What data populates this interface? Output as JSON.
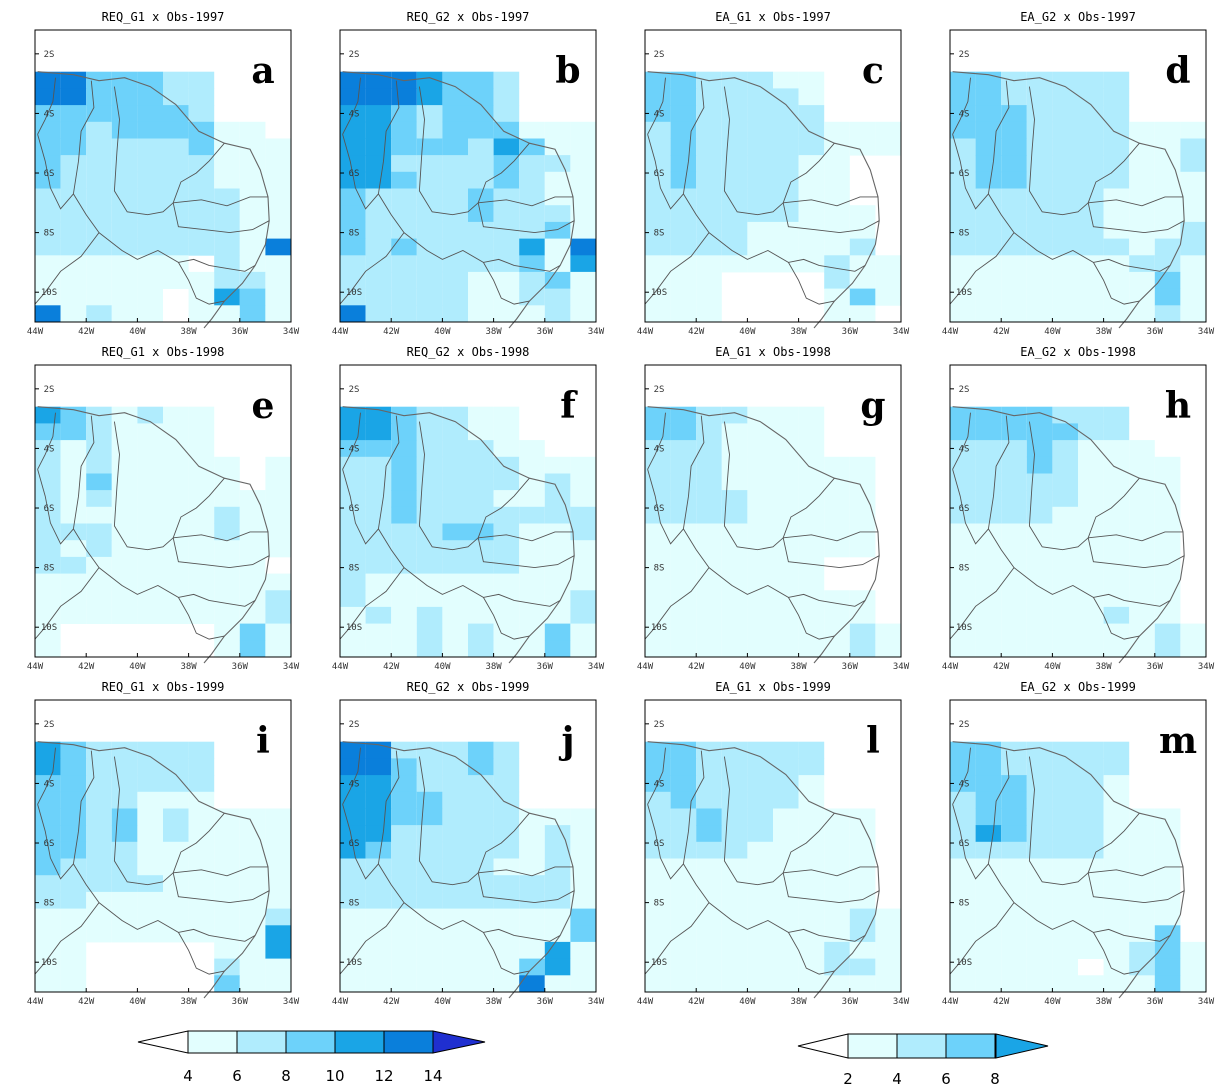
{
  "chart_data": {
    "type": "heatmap",
    "colors": [
      "#e2fefe",
      "#b0ecfd",
      "#6dd2fa",
      "#1aa5e6",
      "#0a7fdb",
      "#2235e6",
      "#1f2fd0"
    ],
    "legend_reg": {
      "ticks": [
        "4",
        "6",
        "8",
        "10",
        "12",
        "14"
      ],
      "colors": [
        "#e2fefe",
        "#b0ecfd",
        "#6dd2fa",
        "#1aa5e6",
        "#0a7fdb",
        "#2235e6"
      ]
    },
    "legend_ea": {
      "ticks": [
        "2",
        "4",
        "6",
        "8"
      ],
      "colors": [
        "#e2fefe",
        "#b0ecfd",
        "#6dd2fa",
        "#1aa5e6"
      ]
    },
    "x_ticks": [
      "44W",
      "42W",
      "40W",
      "38W",
      "36W",
      "34W"
    ],
    "y_ticks": [
      "2S",
      "4S",
      "6S",
      "8S",
      "10S"
    ],
    "panels": [
      {
        "title": "REQ_G1 x Obs-1997",
        "letter": "a",
        "scheme": "reg",
        "grid": [
          "5533322000",
          "5533322000",
          "3333332000",
          "3323333110",
          "3322223111",
          "3222222111",
          "3222222111",
          "2222222211",
          "2222222211",
          "2222222211",
          "2222222215",
          "1111110211",
          "1111111221",
          "1111101431",
          "5121101131"
        ]
      },
      {
        "title": "REQ_G2 x Obs-1997",
        "letter": "b",
        "scheme": "reg",
        "grid": [
          "5554332000",
          "5554332000",
          "4432332000",
          "4432333111",
          "4433324311",
          "4422223221",
          "4432223211",
          "3222232211",
          "3222232221",
          "3222222231",
          "3232222415",
          "2222222314",
          "2222211231",
          "2222211221",
          "5222211121"
        ]
      },
      {
        "title": "EA_G1 x Obs-1997",
        "letter": "c",
        "scheme": "ea",
        "grid": [
          "3322211000",
          "3322221000",
          "3322222000",
          "2322222111",
          "2322222111",
          "2322221100",
          "2322221100",
          "2222221100",
          "2222221110",
          "2222111110",
          "2222111120",
          "1111111211",
          "1110000211",
          "1110000131",
          "1110000110"
        ]
      },
      {
        "title": "EA_G2 x Obs-1997",
        "letter": "d",
        "scheme": "ea",
        "grid": [
          "3322222000",
          "3322222000",
          "3332222000",
          "3332222111",
          "2332222112",
          "2332222112",
          "2332222111",
          "2222221111",
          "2222221111",
          "2222221112",
          "2222222122",
          "1111111221",
          "1111111131",
          "1111111131",
          "1111111121"
        ]
      },
      {
        "title": "REQ_G1 x Obs-1998",
        "letter": "e",
        "scheme": "reg",
        "grid": [
          "4321211000",
          "3321111000",
          "2121111000",
          "2121111101",
          "2131111101",
          "2121111111",
          "2111111211",
          "2221111211",
          "2121111111",
          "2211111110",
          "1111111111",
          "1111111112",
          "1111111112",
          "1000000131",
          "1000000131"
        ]
      },
      {
        "title": "REQ_G2 x Obs-1998",
        "letter": "f",
        "scheme": "reg",
        "grid": [
          "4432211000",
          "4432211000",
          "3332221100",
          "2232222111",
          "2232222121",
          "2232221121",
          "2232222222",
          "2222332112",
          "2222222111",
          "2222222111",
          "2111111111",
          "2111111112",
          "1212111112",
          "1112121131",
          "1112121131"
        ]
      },
      {
        "title": "EA_G1 x Obs-1998",
        "letter": "g",
        "scheme": "ea",
        "grid": [
          "3322111000",
          "3321111000",
          "2221111000",
          "2221111110",
          "2221111110",
          "2222111110",
          "2222111110",
          "1111111110",
          "1111111110",
          "1111111000",
          "1111111000",
          "1111111110",
          "1111111110",
          "1111111121",
          "1111111121"
        ]
      },
      {
        "title": "EA_G2 x Obs-1998",
        "letter": "h",
        "scheme": "ea",
        "grid": [
          "3333222000",
          "3333322000",
          "2223211100",
          "2223211110",
          "2222211110",
          "2222211110",
          "2222111110",
          "1111111110",
          "1111111110",
          "1111111110",
          "1111111110",
          "1111111110",
          "1111112110",
          "1111111121",
          "1111111121"
        ]
      },
      {
        "title": "REQ_G1 x Obs-1999",
        "letter": "i",
        "scheme": "reg",
        "grid": [
          "4322222000",
          "4322222000",
          "3322222000",
          "3322111000",
          "3323121111",
          "3323121111",
          "3322111111",
          "3222111111",
          "2222211111",
          "2211111111",
          "1111111112",
          "1111111114",
          "1100000114",
          "1100000211",
          "1100000311"
        ]
      },
      {
        "title": "REQ_G2 x Obs-1999",
        "letter": "j",
        "scheme": "reg",
        "grid": [
          "5522232000",
          "5532232000",
          "4432222000",
          "4433222000",
          "4433222111",
          "4422222121",
          "4322222121",
          "2222221121",
          "2222222221",
          "2222222221",
          "1111111113",
          "1111111113",
          "1111111141",
          "1111111341",
          "1111111511"
        ]
      },
      {
        "title": "EA_G1 x Obs-1999",
        "letter": "l",
        "scheme": "ea",
        "grid": [
          "3322222000",
          "3322222000",
          "3322221000",
          "2322221000",
          "2232211110",
          "2232211110",
          "2222111110",
          "1111111110",
          "1111111110",
          "1111111110",
          "1111111121",
          "1111111121",
          "1111111211",
          "1111111221",
          "1111111111"
        ]
      },
      {
        "title": "EA_G2 x Obs-1999",
        "letter": "m",
        "scheme": "ea",
        "grid": [
          "3322222000",
          "3322222000",
          "3332221000",
          "2332221000",
          "2332221110",
          "2432221110",
          "2222221110",
          "1111111110",
          "1111111110",
          "1111111110",
          "1111111110",
          "1111111130",
          "1111111231",
          "1111101231",
          "1111111131"
        ]
      }
    ]
  }
}
